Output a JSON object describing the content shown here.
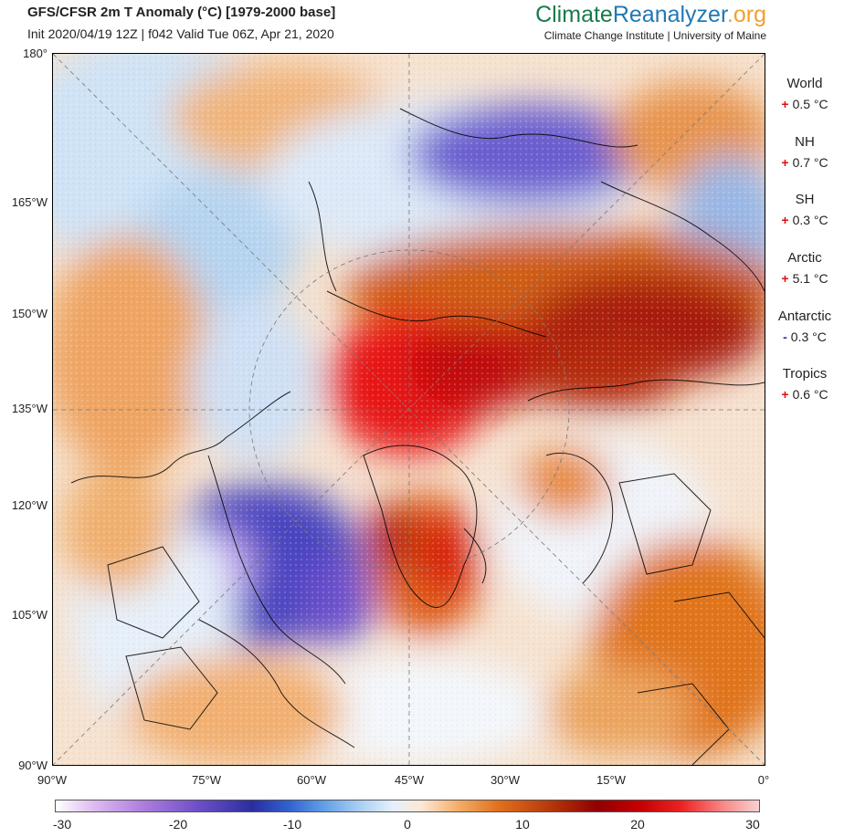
{
  "header": {
    "title": "GFS/CFSR 2m T Anomaly (°C) [1979-2000 base]",
    "subtitle": "Init 2020/04/19 12Z | f042 Valid Tue 06Z, Apr 21, 2020",
    "brand": {
      "part1": "Climate",
      "part2": "Reanalyzer",
      "part3": ".org"
    },
    "brand_sub": "Climate Change Institute | University of Maine"
  },
  "axes": {
    "left_labels": [
      "180°",
      "165°W",
      "150°W",
      "135°W",
      "120°W",
      "105°W",
      "90°W"
    ],
    "bottom_labels": [
      "90°W",
      "75°W",
      "60°W",
      "45°W",
      "30°W",
      "15°W",
      "0°"
    ]
  },
  "regions": [
    {
      "name": "World",
      "sign": "+",
      "value": "0.5 °C"
    },
    {
      "name": "NH",
      "sign": "+",
      "value": "0.7 °C"
    },
    {
      "name": "SH",
      "sign": "+",
      "value": "0.3 °C"
    },
    {
      "name": "Arctic",
      "sign": "+",
      "value": "5.1 °C"
    },
    {
      "name": "Antarctic",
      "sign": "-",
      "value": "0.3 °C"
    },
    {
      "name": "Tropics",
      "sign": "+",
      "value": "0.6 °C"
    }
  ],
  "colors": {
    "positive_sign": "#dd1111",
    "negative_sign": "#2233aa"
  },
  "colorbar": {
    "ticks": [
      "-30",
      "-20",
      "-10",
      "0",
      "10",
      "20",
      "30"
    ],
    "min": -30,
    "max": 30
  }
}
